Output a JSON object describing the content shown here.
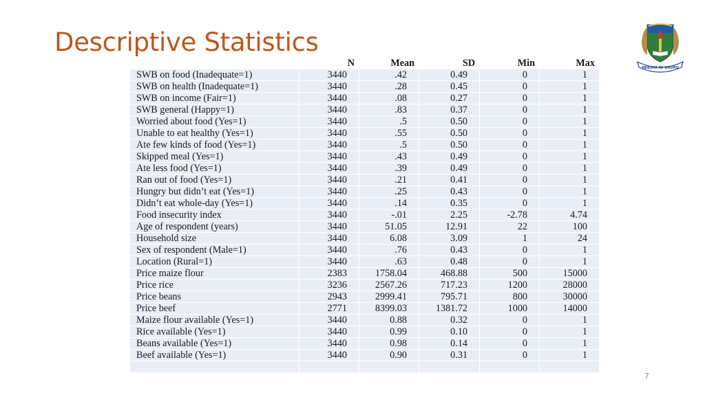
{
  "slide": {
    "title": "Descriptive Statistics",
    "page_number": "7",
    "logo_text": "HEKIMA NI UHURU"
  },
  "table": {
    "columns": [
      "N",
      "Mean",
      "SD",
      "Min",
      "Max"
    ],
    "rows": [
      {
        "label": "SWB on food (Inadequate=1)",
        "n": "3440",
        "mean": ".42",
        "sd": "0.49",
        "min": "0",
        "max": "1"
      },
      {
        "label": "SWB on health (Inadequate=1)",
        "n": "3440",
        "mean": ".28",
        "sd": "0.45",
        "min": "0",
        "max": "1"
      },
      {
        "label": "SWB on income (Fair=1)",
        "n": "3440",
        "mean": ".08",
        "sd": "0.27",
        "min": "0",
        "max": "1"
      },
      {
        "label": "SWB general (Happy=1)",
        "n": "3440",
        "mean": ".83",
        "sd": "0.37",
        "min": "0",
        "max": "1"
      },
      {
        "label": "Worried about food (Yes=1)",
        "n": "3440",
        "mean": ".5",
        "sd": "0.50",
        "min": "0",
        "max": "1"
      },
      {
        "label": "Unable to eat healthy (Yes=1)",
        "n": "3440",
        "mean": ".55",
        "sd": "0.50",
        "min": "0",
        "max": "1"
      },
      {
        "label": "Ate few kinds of food (Yes=1)",
        "n": "3440",
        "mean": ".5",
        "sd": "0.50",
        "min": "0",
        "max": "1"
      },
      {
        "label": "Skipped meal (Yes=1)",
        "n": "3440",
        "mean": ".43",
        "sd": "0.49",
        "min": "0",
        "max": "1"
      },
      {
        "label": "Ate less food (Yes=1)",
        "n": "3440",
        "mean": ".39",
        "sd": "0.49",
        "min": "0",
        "max": "1"
      },
      {
        "label": "Ran out of food (Yes=1)",
        "n": "3440",
        "mean": ".21",
        "sd": "0.41",
        "min": "0",
        "max": "1"
      },
      {
        "label": "Hungry but didn’t eat (Yes=1)",
        "n": "3440",
        "mean": ".25",
        "sd": "0.43",
        "min": "0",
        "max": "1"
      },
      {
        "label": "Didn’t eat whole-day (Yes=1)",
        "n": "3440",
        "mean": ".14",
        "sd": "0.35",
        "min": "0",
        "max": "1"
      },
      {
        "label": "Food insecurity index",
        "n": "3440",
        "mean": "-.01",
        "sd": "2.25",
        "min": "-2.78",
        "max": "4.74"
      },
      {
        "label": "Age of respondent (years)",
        "n": "3440",
        "mean": "51.05",
        "sd": "12.91",
        "min": "22",
        "max": "100"
      },
      {
        "label": "Household size",
        "n": "3440",
        "mean": "6.08",
        "sd": "3.09",
        "min": "1",
        "max": "24"
      },
      {
        "label": "Sex of respondent (Male=1)",
        "n": "3440",
        "mean": ".76",
        "sd": "0.43",
        "min": "0",
        "max": "1"
      },
      {
        "label": "Location (Rural=1)",
        "n": "3440",
        "mean": ".63",
        "sd": "0.48",
        "min": "0",
        "max": "1"
      },
      {
        "label": "Price maize flour",
        "n": "2383",
        "mean": "1758.04",
        "sd": "468.88",
        "min": "500",
        "max": "15000"
      },
      {
        "label": "Price rice",
        "n": "3236",
        "mean": "2567.26",
        "sd": "717.23",
        "min": "1200",
        "max": "28000"
      },
      {
        "label": "Price beans",
        "n": "2943",
        "mean": "2999.41",
        "sd": "795.71",
        "min": "800",
        "max": "30000"
      },
      {
        "label": "Price beef",
        "n": "2771",
        "mean": "8399.03",
        "sd": "1381.72",
        "min": "1000",
        "max": "14000"
      },
      {
        "label": "Maize flour available (Yes=1)",
        "n": "3440",
        "mean": "0.88",
        "sd": "0.32",
        "min": "0",
        "max": "1"
      },
      {
        "label": "Rice available (Yes=1)",
        "n": "3440",
        "mean": "0.99",
        "sd": "0.10",
        "min": "0",
        "max": "1"
      },
      {
        "label": "Beans available (Yes=1)",
        "n": "3440",
        "mean": "0.98",
        "sd": "0.14",
        "min": "0",
        "max": "1"
      },
      {
        "label": "Beef available (Yes=1)",
        "n": "3440",
        "mean": "0.90",
        "sd": "0.31",
        "min": "0",
        "max": "1"
      }
    ]
  }
}
